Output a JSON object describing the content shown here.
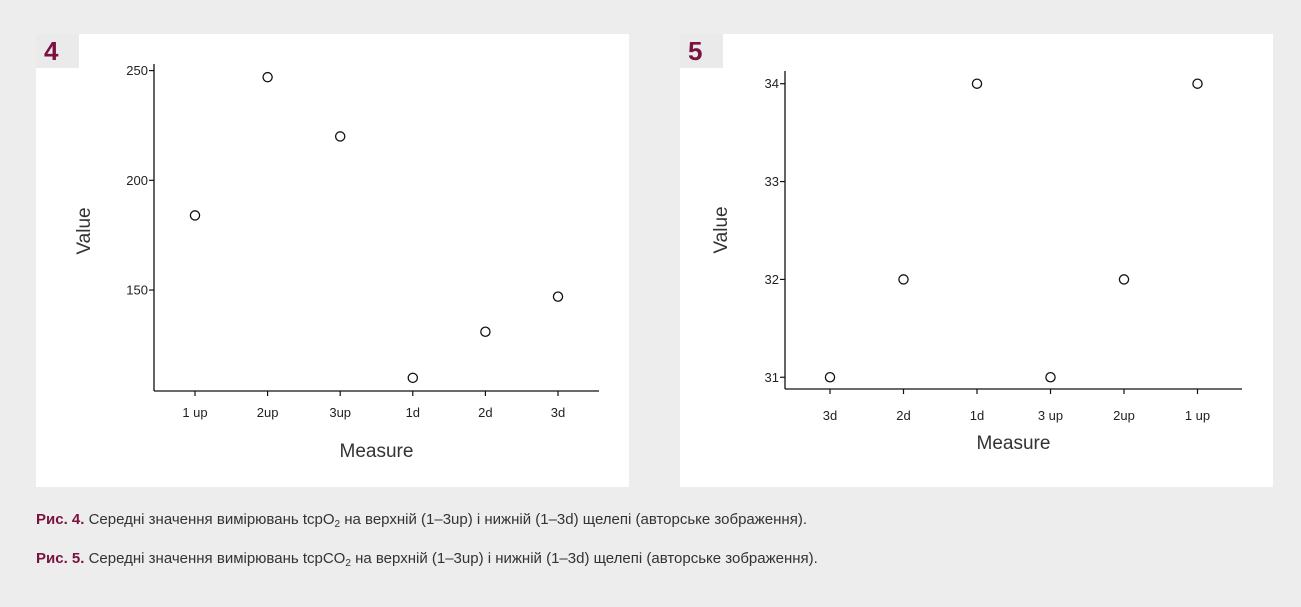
{
  "chart_data": [
    {
      "type": "scatter",
      "panel_number": "4",
      "categories": [
        "1 up",
        "2up",
        "3up",
        "1d",
        "2d",
        "3d"
      ],
      "values": [
        184,
        247,
        220,
        110,
        131,
        147
      ],
      "xlabel": "Measure",
      "ylabel": "Value",
      "yticks": [
        150,
        200,
        250
      ],
      "ylim": [
        104,
        253
      ],
      "grid": false,
      "marker": "open-circle"
    },
    {
      "type": "scatter",
      "panel_number": "5",
      "categories": [
        "3d",
        "2d",
        "1d",
        "3 up",
        "2up",
        "1 up"
      ],
      "values": [
        31,
        32,
        34,
        31,
        32,
        34
      ],
      "xlabel": "Measure",
      "ylabel": "Value",
      "yticks": [
        31,
        32,
        33,
        34
      ],
      "ylim": [
        30.88,
        34.13
      ],
      "grid": false,
      "marker": "open-circle"
    }
  ],
  "captions": [
    {
      "label": "Рис. 4.",
      "text_before": " Середні значення вимірювань tcpO",
      "subscript": "2",
      "text_after": " на верхній (1–3up) і нижній (1–3d) щелепі (авторське зображення)."
    },
    {
      "label": "Рис. 5.",
      "text_before": " Середні значення вимірювань tcpCO",
      "subscript": "2",
      "text_after": " на верхній (1–3up) і нижній (1–3d) щелепі (авторське зображення)."
    }
  ],
  "colors": {
    "background": "#ededed",
    "panel": "#ffffff",
    "accent": "#7a1140",
    "marker_stroke": "#111111"
  }
}
